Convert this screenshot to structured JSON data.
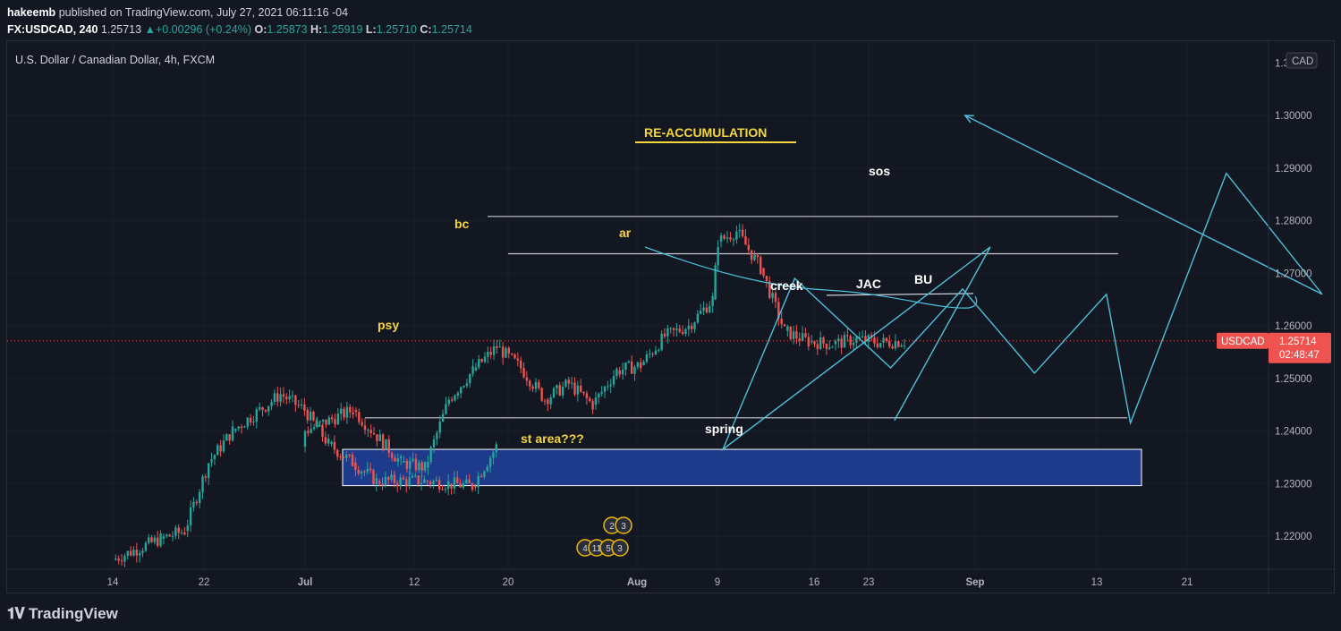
{
  "header": {
    "publisher": "hakeemb",
    "published_text": "published on TradingView.com, July 27, 2021 06:11:16 -04",
    "symbol": "FX:USDCAD, 240",
    "last": "1.25713",
    "change": "+0.00296 (+0.24%)",
    "open_label": "O:",
    "open": "1.25873",
    "high_label": "H:",
    "high": "1.25919",
    "low_label": "L:",
    "low": "1.25710",
    "close_label": "C:",
    "close": "1.25714"
  },
  "legend": {
    "title": "U.S. Dollar / Canadian Dollar, 4h, FXCM"
  },
  "currency_label": "CAD",
  "price_tag": {
    "symbol": "USDCAD",
    "price": "1.25714",
    "countdown": "02:48:47"
  },
  "footer": {
    "brand": "TradingView"
  },
  "colors": {
    "up": "#26a69a",
    "down": "#ef5350",
    "drawing": "#4dc1d9",
    "annotation": "#f5d63c",
    "zone_fill": "#1e3a8a",
    "price_tag": "#ef5350"
  },
  "chart_data": {
    "type": "candlestick",
    "title": "U.S. Dollar / Canadian Dollar, 4h, FXCM",
    "y_axis": {
      "ticks": [
        "1.22000",
        "1.23000",
        "1.24000",
        "1.25000",
        "1.26000",
        "1.27000",
        "1.28000",
        "1.29000",
        "1.30000"
      ],
      "top_clipped_label": "1.310",
      "range": [
        1.212,
        1.312
      ]
    },
    "x_axis": {
      "ticks": [
        "14",
        "22",
        "Jul",
        "12",
        "20",
        "Aug",
        "9",
        "16",
        "23",
        "Sep",
        "13",
        "21"
      ]
    },
    "price_path": [
      [
        "Jun 14",
        1.2155
      ],
      [
        "Jun 16",
        1.2195
      ],
      [
        "Jun 17",
        1.221
      ],
      [
        "Jun 18",
        1.234
      ],
      [
        "Jun 19",
        1.24
      ],
      [
        "Jun 21",
        1.247
      ],
      [
        "Jun 22",
        1.244
      ],
      [
        "Jun 23",
        1.2375
      ],
      [
        "Jun 24",
        1.234
      ],
      [
        "Jun 25",
        1.2305
      ],
      [
        "Jun 27",
        1.2305
      ],
      [
        "Jun 28",
        1.23
      ],
      [
        "Jun 29",
        1.2295
      ],
      [
        "Jun 30",
        1.237
      ],
      [
        "Jul 1",
        1.24
      ],
      [
        "Jul 3",
        1.244
      ],
      [
        "Jul 5",
        1.234
      ],
      [
        "Jul 6",
        1.233
      ],
      [
        "Jul 7",
        1.246
      ],
      [
        "Jul 8",
        1.2515
      ],
      [
        "Jul 9",
        1.256
      ],
      [
        "Jul 10",
        1.252
      ],
      [
        "Jul 11",
        1.246
      ],
      [
        "Jul 12",
        1.249
      ],
      [
        "Jul 13",
        1.245
      ],
      [
        "Jul 14",
        1.2515
      ],
      [
        "Jul 15",
        1.2525
      ],
      [
        "Jul 16",
        1.258
      ],
      [
        "Jul 17",
        1.26
      ],
      [
        "Jul 18",
        1.265
      ],
      [
        "Jul 18",
        1.276
      ],
      [
        "Jul 19",
        1.278
      ],
      [
        "Jul 20",
        1.271
      ],
      [
        "Jul 21",
        1.259
      ],
      [
        "Jul 22",
        1.257
      ],
      [
        "Jul 23",
        1.2565
      ],
      [
        "Jul 24",
        1.2575
      ],
      [
        "Jul 25",
        1.2568
      ],
      [
        "Jul 26",
        1.2571
      ]
    ],
    "current_price": 1.25714,
    "horizontal_lines": [
      1.2808,
      1.2737,
      1.2425,
      1.2658
    ],
    "zone": {
      "from": 1.2296,
      "to": 1.2365
    },
    "projection_path": [
      [
        "Jul 27",
        1.242
      ],
      [
        "Jul 31",
        1.275
      ],
      [
        "Aug 6",
        1.2365
      ],
      [
        "Aug 9",
        1.269
      ],
      [
        "Aug 13",
        1.252
      ],
      [
        "Aug 16",
        1.267
      ],
      [
        "Aug 19",
        1.251
      ],
      [
        "Aug 22",
        1.266
      ],
      [
        "Aug 23",
        1.2415
      ],
      [
        "Aug 27",
        1.289
      ],
      [
        "Aug 31",
        1.266
      ],
      [
        "Sep 2",
        1.3
      ]
    ],
    "annotations": [
      {
        "text": "RE-ACCUMULATION",
        "color": "#f5d63c"
      },
      {
        "text": "bc",
        "color": "#f5d63c"
      },
      {
        "text": "ar",
        "color": "#f5d63c"
      },
      {
        "text": "psy",
        "color": "#f5d63c"
      },
      {
        "text": "st area???",
        "color": "#f5d63c"
      },
      {
        "text": "sos",
        "color": "#ffffff"
      },
      {
        "text": "creek",
        "color": "#ffffff"
      },
      {
        "text": "JAC",
        "color": "#ffffff"
      },
      {
        "text": "BU",
        "color": "#ffffff"
      },
      {
        "text": "spring",
        "color": "#ffffff"
      }
    ],
    "event_badges": [
      {
        "row": "top",
        "counts": [
          "2",
          "3"
        ]
      },
      {
        "row": "bottom",
        "counts": [
          "4",
          "11",
          "5",
          "3"
        ]
      }
    ]
  }
}
